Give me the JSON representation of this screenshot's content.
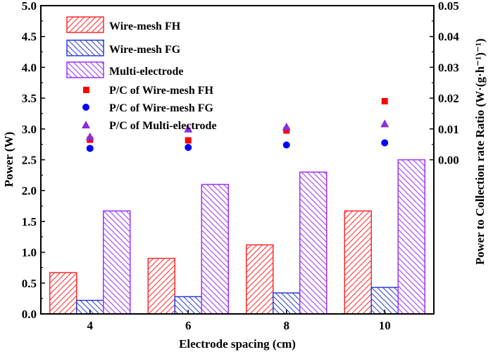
{
  "chart_data": {
    "type": "bar",
    "xlabel": "Electrode spacing (cm)",
    "ylabel": "Power (W)",
    "y2label": "Power to Collection rate Ratio (W·(g·h⁻¹)⁻¹)",
    "categories": [
      "4",
      "6",
      "8",
      "10"
    ],
    "ylim": [
      0,
      5
    ],
    "y_ticks": [
      "0.0",
      "0.5",
      "1.0",
      "1.5",
      "2.0",
      "2.5",
      "3.0",
      "3.5",
      "4.0",
      "4.5",
      "5.0"
    ],
    "y2_ticks": [
      "0.00",
      "0.01",
      "0.02",
      "0.03",
      "0.04",
      "0.05"
    ],
    "y2_ticks_primary_pos": [
      2.5,
      3.0,
      3.5,
      4.0,
      4.5,
      5.0
    ],
    "grid": false,
    "legend_position": "top-left",
    "series": [
      {
        "name": "Wire-mesh FH",
        "kind": "bar",
        "color": "#ff2a2a",
        "hatch": "back",
        "values": [
          0.67,
          0.9,
          1.12,
          1.67
        ]
      },
      {
        "name": "Wire-mesh FG",
        "kind": "bar",
        "color": "#2a3bd4",
        "hatch": "forward",
        "values": [
          0.22,
          0.28,
          0.34,
          0.43
        ]
      },
      {
        "name": "Multi-electrode",
        "kind": "bar",
        "color": "#9b30ff",
        "hatch": "back",
        "values": [
          1.67,
          2.1,
          2.3,
          2.5
        ]
      },
      {
        "name": "P/C of Wire-mesh FH",
        "kind": "scatter",
        "marker": "square",
        "color": "#ff0000",
        "axis": "y2",
        "values": [
          0.0065,
          0.0063,
          0.0095,
          0.019
        ]
      },
      {
        "name": "P/C of Wire-mesh FG",
        "kind": "scatter",
        "marker": "circle",
        "color": "#0000ff",
        "axis": "y2",
        "values": [
          0.0037,
          0.004,
          0.0048,
          0.0055
        ]
      },
      {
        "name": "P/C of Multi-electrode",
        "kind": "scatter",
        "marker": "triangle",
        "color": "#8a2be2",
        "axis": "y2",
        "values": [
          0.0075,
          0.01,
          0.0107,
          0.0117
        ]
      }
    ]
  }
}
